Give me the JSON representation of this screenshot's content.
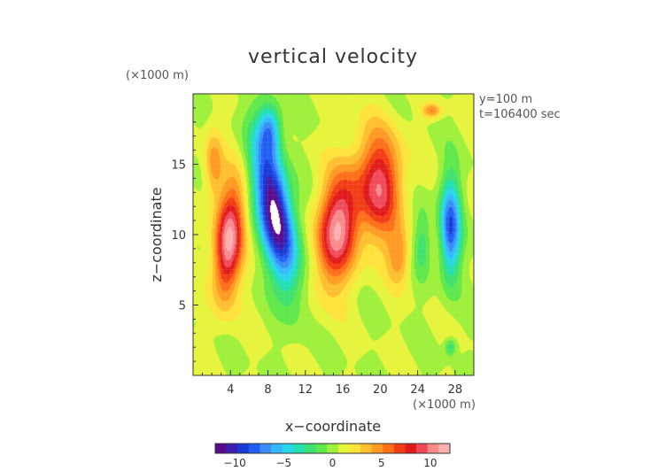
{
  "chart_data": {
    "type": "heatmap",
    "title": "vertical velocity",
    "xlabel": "x−coordinate",
    "ylabel": "z−coordinate",
    "x_unit": "(×1000 m)",
    "y_unit": "(×1000 m)",
    "annotations": [
      "y=100 m",
      "t=106400 sec"
    ],
    "xlim": [
      0,
      30
    ],
    "ylim": [
      0,
      20
    ],
    "x_ticks": [
      4,
      8,
      12,
      16,
      20,
      24,
      28
    ],
    "x_tick_labels": [
      "4",
      "8",
      "12",
      "16",
      "20",
      "24",
      "28"
    ],
    "y_ticks": [
      5,
      10,
      15
    ],
    "y_tick_labels": [
      "5",
      "10",
      "15"
    ],
    "colorbar": {
      "range": [
        -12,
        12
      ],
      "ticks": [
        -10,
        -5,
        0,
        5,
        10
      ],
      "tick_labels": [
        "−10",
        "−5",
        "0",
        "5",
        "10"
      ],
      "colors": [
        "#5a0a8c",
        "#3a1fb0",
        "#1a3ad8",
        "#1f5ef0",
        "#3a8cf8",
        "#33b8ff",
        "#2ad6e8",
        "#22e0b0",
        "#3ee070",
        "#5ee84a",
        "#9ef03a",
        "#e6f43a",
        "#ffe23a",
        "#ffbf2e",
        "#ff9a22",
        "#ff6e18",
        "#f23c14",
        "#e01a1a",
        "#f04a5a",
        "#f88a8a",
        "#fbb0b0"
      ]
    },
    "background_value": 0.6,
    "features": [
      {
        "name": "updraft-left",
        "x": 3.8,
        "z": 9.5,
        "sx": 1.5,
        "sz": 4.0,
        "amp": 10.5,
        "tilt": 0.1
      },
      {
        "name": "updraft-left-top",
        "x": 2.2,
        "z": 15.0,
        "sx": 1.0,
        "sz": 2.5,
        "amp": 4.0,
        "tilt": 0.0
      },
      {
        "name": "downdraft-center",
        "x": 8.8,
        "z": 11.5,
        "sx": 1.8,
        "sz": 5.0,
        "amp": -13.5,
        "tilt": -0.25
      },
      {
        "name": "downdraft-center-top",
        "x": 8.2,
        "z": 17.5,
        "sx": 1.2,
        "sz": 1.8,
        "amp": -6.0,
        "tilt": 0.0
      },
      {
        "name": "updraft-mid",
        "x": 15.5,
        "z": 10.5,
        "sx": 2.2,
        "sz": 4.0,
        "amp": 10.0,
        "tilt": 0.15
      },
      {
        "name": "updraft-right",
        "x": 20.0,
        "z": 13.5,
        "sx": 2.3,
        "sz": 3.8,
        "amp": 8.5,
        "tilt": 0.0
      },
      {
        "name": "updraft-right-low",
        "x": 22.0,
        "z": 8.5,
        "sx": 1.2,
        "sz": 2.0,
        "amp": 4.0,
        "tilt": 0.0
      },
      {
        "name": "downdraft-right",
        "x": 27.5,
        "z": 10.5,
        "sx": 1.1,
        "sz": 3.5,
        "amp": -9.0,
        "tilt": 0.0
      },
      {
        "name": "downdraft-gap",
        "x": 24.5,
        "z": 9.5,
        "sx": 1.0,
        "sz": 2.5,
        "amp": -3.0,
        "tilt": 0.0
      },
      {
        "name": "updraft-top-right",
        "x": 25.5,
        "z": 18.8,
        "sx": 1.0,
        "sz": 0.5,
        "amp": 4.5,
        "tilt": 0.0
      },
      {
        "name": "downdraft-small-low",
        "x": 27.5,
        "z": 2.0,
        "sx": 0.6,
        "sz": 0.6,
        "amp": -3.5,
        "tilt": 0.0
      }
    ],
    "masked_region": {
      "label": "below-colorbar-minimum",
      "value_below": -12
    }
  }
}
